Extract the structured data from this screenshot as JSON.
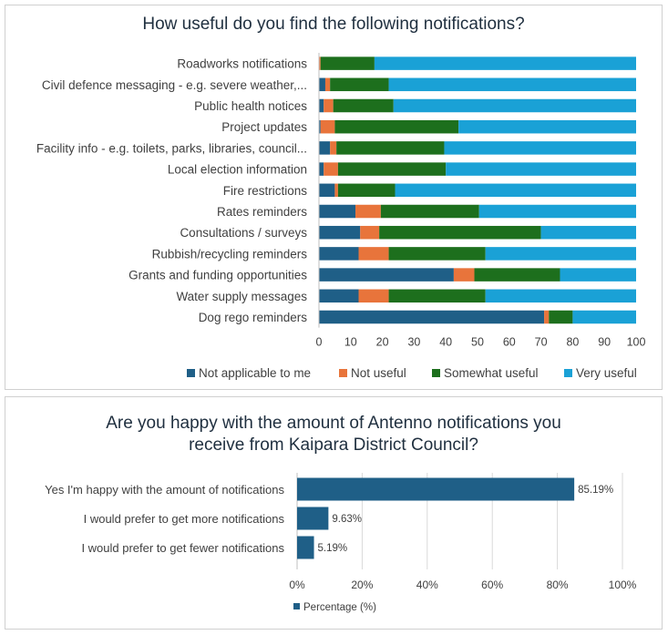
{
  "chart_data": [
    {
      "type": "bar",
      "orientation": "horizontal",
      "stacked": true,
      "title": "How useful do you find the following notifications?",
      "categories": [
        "Roadworks notifications",
        "Civil defence messaging - e.g. severe weather,...",
        "Public health notices",
        "Project updates",
        "Facility info - e.g. toilets, parks, libraries, council...",
        "Local election information",
        "Fire restrictions",
        "Rates reminders",
        "Consultations / surveys",
        "Rubbish/recycling reminders",
        "Grants and funding opportunities",
        "Water supply messages",
        "Dog rego reminders"
      ],
      "series": [
        {
          "name": "Not applicable to me",
          "color": "#1f5f87",
          "values": [
            0,
            2,
            1.5,
            0.5,
            3.5,
            1.5,
            5,
            11.5,
            13,
            12.5,
            42.5,
            12.5,
            71
          ]
        },
        {
          "name": "Not useful",
          "color": "#e8743b",
          "values": [
            0.5,
            1.5,
            3,
            4.5,
            2,
            4.5,
            1,
            8,
            6,
            9.5,
            6.5,
            9.5,
            1.5
          ]
        },
        {
          "name": "Somewhat useful",
          "color": "#1d6f1d",
          "values": [
            17,
            18.5,
            19,
            39,
            34,
            34,
            18,
            31,
            51,
            30.5,
            27,
            30.5,
            7.5
          ]
        },
        {
          "name": "Very useful",
          "color": "#1aa1d6",
          "values": [
            82.5,
            78,
            76.5,
            56,
            60.5,
            60,
            76,
            49.5,
            30,
            47.5,
            24,
            47.5,
            20
          ]
        }
      ],
      "xlim": [
        0,
        100
      ],
      "xticks": [
        "0",
        "10",
        "20",
        "30",
        "40",
        "50",
        "60",
        "70",
        "80",
        "90",
        "100"
      ],
      "legend": "bottom"
    },
    {
      "type": "bar",
      "orientation": "horizontal",
      "title": "Are you happy with the amount of Antenno notifications you receive from Kaipara District Council?",
      "title_lines": [
        "Are you happy with the amount of Antenno notifications you",
        "receive from Kaipara District Council?"
      ],
      "categories": [
        "Yes I'm happy with the amount of notifications",
        "I would prefer to get more notifications",
        "I would prefer to get fewer notifications"
      ],
      "series": [
        {
          "name": "Percentage (%)",
          "color": "#1f5f87",
          "values": [
            85.19,
            9.63,
            5.19
          ],
          "labels": [
            "85.19%",
            "9.63%",
            "5.19%"
          ]
        }
      ],
      "xlim": [
        0,
        100
      ],
      "xticks": [
        "0%",
        "20%",
        "40%",
        "60%",
        "80%",
        "100%"
      ],
      "grid": true,
      "legend": "bottom-left"
    }
  ]
}
